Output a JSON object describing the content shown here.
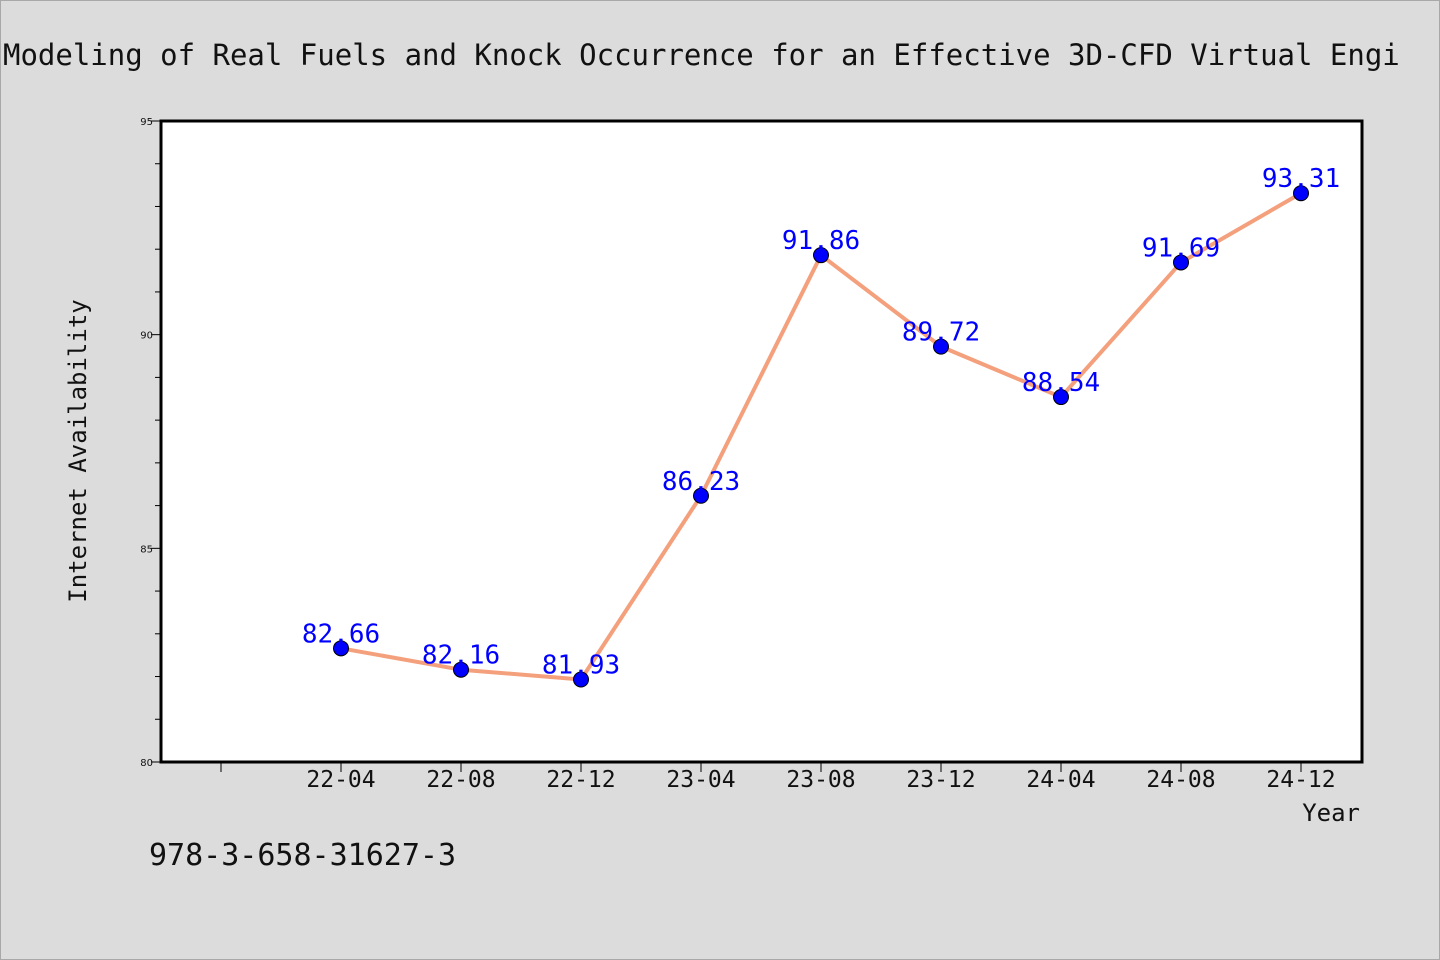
{
  "chart_data": {
    "type": "line",
    "title": "Modeling of Real Fuels and Knock Occurrence for an Effective 3D-CFD Virtual Engi",
    "xlabel": "Year",
    "ylabel": "Internet Availability",
    "categories": [
      "22-04",
      "22-08",
      "22-12",
      "23-04",
      "23-08",
      "23-12",
      "24-04",
      "24-08",
      "24-12"
    ],
    "series": [
      {
        "values": [
          82.66,
          82.16,
          81.93,
          86.23,
          91.86,
          89.72,
          88.54,
          91.69,
          93.31
        ],
        "line_color": "#f4a07c",
        "marker_color": "#0000ff"
      }
    ],
    "ylim": [
      80,
      95
    ],
    "yticks": [
      80,
      85,
      90,
      95
    ],
    "grid": false,
    "data_labels": [
      "82.66",
      "82.16",
      "81.93",
      "86.23",
      "91.86",
      "89.72",
      "88.54",
      "91.69",
      "93.31"
    ]
  },
  "footer_text": "978-3-658-31627-3"
}
